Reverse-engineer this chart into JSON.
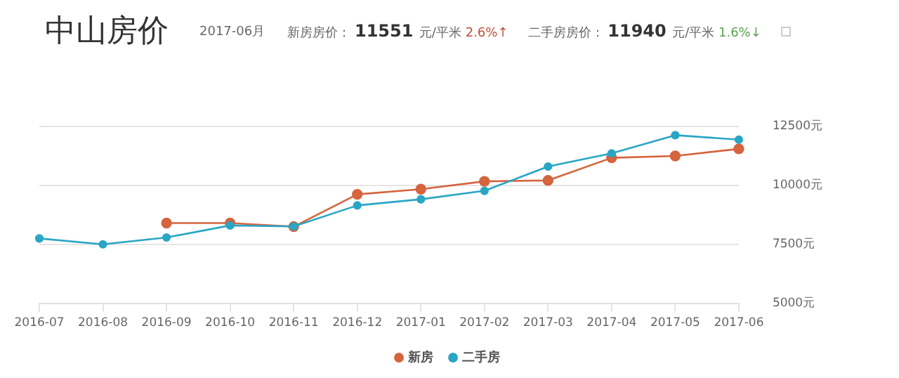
{
  "chart_data": {
    "type": "line",
    "title": "中山房价",
    "subtitle": "2017-06月",
    "annotations": [
      "新房房价： 11551 元/平米 2.6%↑",
      "二手房房价： 11940 元/平米 1.6%↓"
    ],
    "categories": [
      "2016-07",
      "2016-08",
      "2016-09",
      "2016-10",
      "2016-11",
      "2016-12",
      "2017-01",
      "2017-02",
      "2017-03",
      "2017-04",
      "2017-05",
      "2017-06"
    ],
    "series": [
      {
        "name": "新房",
        "color": "#d5643f",
        "values": [
          null,
          null,
          8400,
          8400,
          8250,
          9620,
          9840,
          10170,
          10210,
          11170,
          11250,
          11551
        ]
      },
      {
        "name": "二手房",
        "color": "#2aa6c4",
        "values": [
          7750,
          7500,
          7790,
          8300,
          8260,
          9150,
          9410,
          9770,
          10800,
          11360,
          12130,
          11940
        ]
      }
    ],
    "ylim": [
      5000,
      12500
    ],
    "yticks": [
      {
        "value": 5000,
        "label": "5000元"
      },
      {
        "value": 7500,
        "label": "7500元"
      },
      {
        "value": 10000,
        "label": "10000元"
      },
      {
        "value": 12500,
        "label": "12500元"
      }
    ],
    "grid": "y",
    "legend": "bottom",
    "marker": "circle",
    "line_style": "solid"
  }
}
